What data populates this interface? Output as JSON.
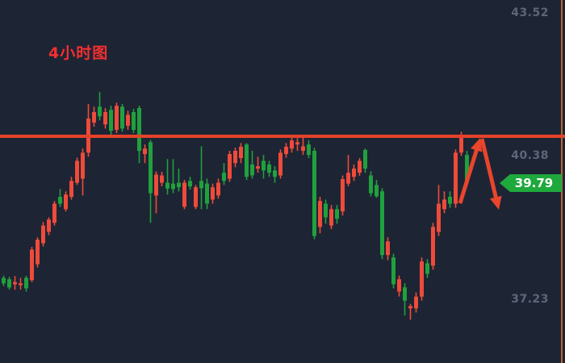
{
  "title": {
    "text": "4小时图"
  },
  "colors": {
    "background": "#1d2433",
    "bull": "#ef4b3a",
    "bear": "#21a13e",
    "line": "#e8432a",
    "arrow": "#e8452c",
    "axis_border": "#b96530",
    "label": "#5d6577",
    "badge_bg": "#1fa83c",
    "badge_text": "#ffffff",
    "title": "#f42f2f"
  },
  "price_axis": {
    "labels": [
      {
        "text": "43.52",
        "price": 43.52
      },
      {
        "text": "40.38",
        "price": 40.38
      },
      {
        "text": "37.23",
        "price": 37.23
      }
    ],
    "scale": {
      "price_a": 43.52,
      "y_a": 16,
      "price_b": 37.23,
      "y_b": 371
    }
  },
  "resistance_line": {
    "price": 40.81
  },
  "price_tag": {
    "text": "39.79",
    "price": 39.79
  },
  "annotations": {
    "arrows": [
      {
        "direction": "up",
        "from": [
          570,
          252
        ],
        "to": [
          595,
          171
        ]
      },
      {
        "direction": "down",
        "from": [
          597,
          172
        ],
        "to": [
          618,
          260
        ]
      }
    ]
  },
  "chart_data": {
    "type": "candlestick",
    "title": "4小时图",
    "timeframe": "4h",
    "last_price": 39.79,
    "resistance_price": 40.81,
    "y_axis_ticks": [
      43.52,
      40.38,
      37.23
    ],
    "ylim": [
      36.6,
      43.8
    ],
    "grid": false,
    "up_color_convention": "red-up-green-down",
    "layout": {
      "x_start": 2,
      "x_step": 7,
      "body_width": 5
    },
    "ohlc_format": [
      "open",
      "high",
      "low",
      "close"
    ],
    "candles": [
      [
        37.7,
        37.75,
        37.52,
        37.58
      ],
      [
        37.67,
        37.72,
        37.44,
        37.49
      ],
      [
        37.56,
        37.74,
        37.44,
        37.61
      ],
      [
        37.54,
        37.7,
        37.44,
        37.58
      ],
      [
        37.7,
        37.75,
        37.4,
        37.47
      ],
      [
        37.65,
        38.38,
        37.61,
        38.32
      ],
      [
        38.0,
        38.59,
        37.93,
        38.54
      ],
      [
        38.46,
        38.93,
        38.39,
        38.85
      ],
      [
        38.71,
        39.03,
        38.64,
        38.98
      ],
      [
        38.91,
        39.39,
        38.85,
        39.33
      ],
      [
        39.48,
        39.65,
        39.26,
        39.33
      ],
      [
        39.21,
        39.6,
        39.16,
        39.53
      ],
      [
        39.48,
        39.92,
        39.42,
        39.83
      ],
      [
        39.79,
        40.34,
        39.74,
        40.27
      ],
      [
        39.88,
        40.54,
        39.51,
        40.45
      ],
      [
        40.45,
        41.52,
        40.36,
        41.2
      ],
      [
        41.11,
        41.46,
        41.02,
        41.34
      ],
      [
        41.46,
        41.78,
        41.16,
        41.25
      ],
      [
        41.07,
        41.43,
        40.98,
        41.34
      ],
      [
        41.39,
        41.48,
        40.84,
        40.93
      ],
      [
        40.95,
        41.55,
        40.88,
        41.48
      ],
      [
        41.46,
        41.52,
        40.91,
        40.98
      ],
      [
        41.04,
        41.37,
        40.95,
        41.28
      ],
      [
        41.34,
        41.41,
        40.88,
        40.95
      ],
      [
        41.43,
        41.48,
        40.22,
        40.49
      ],
      [
        40.42,
        40.63,
        40.22,
        40.54
      ],
      [
        40.68,
        40.73,
        38.91,
        39.56
      ],
      [
        39.51,
        40.04,
        39.12,
        39.97
      ],
      [
        39.79,
        40.03,
        39.71,
        39.95
      ],
      [
        39.79,
        40.31,
        39.53,
        39.66
      ],
      [
        39.77,
        40.31,
        39.56,
        39.65
      ],
      [
        39.79,
        40.1,
        39.6,
        39.69
      ],
      [
        39.26,
        39.85,
        39.21,
        39.79
      ],
      [
        39.83,
        39.92,
        39.64,
        39.71
      ],
      [
        39.26,
        39.74,
        39.21,
        39.69
      ],
      [
        39.83,
        40.59,
        39.21,
        39.67
      ],
      [
        39.77,
        39.88,
        39.21,
        39.33
      ],
      [
        39.42,
        39.77,
        39.33,
        39.69
      ],
      [
        39.51,
        39.88,
        39.44,
        39.79
      ],
      [
        40.01,
        40.22,
        39.74,
        39.83
      ],
      [
        39.88,
        40.49,
        39.81,
        40.42
      ],
      [
        40.22,
        40.56,
        40.13,
        40.49
      ],
      [
        40.33,
        40.66,
        40.22,
        40.58
      ],
      [
        40.63,
        40.66,
        39.85,
        39.92
      ],
      [
        40.19,
        40.49,
        39.88,
        39.95
      ],
      [
        40.1,
        40.36,
        40.01,
        40.15
      ],
      [
        40.27,
        40.4,
        39.88,
        40.06
      ],
      [
        40.19,
        40.27,
        39.92,
        40.01
      ],
      [
        40.06,
        40.15,
        39.79,
        39.92
      ],
      [
        39.95,
        40.52,
        39.88,
        40.45
      ],
      [
        40.42,
        40.66,
        40.34,
        40.58
      ],
      [
        40.54,
        40.81,
        40.45,
        40.72
      ],
      [
        40.63,
        40.77,
        40.49,
        40.68
      ],
      [
        40.49,
        40.81,
        40.4,
        40.59
      ],
      [
        40.63,
        40.72,
        40.33,
        40.4
      ],
      [
        40.49,
        40.56,
        38.55,
        38.62
      ],
      [
        38.82,
        39.48,
        38.68,
        39.39
      ],
      [
        39.33,
        39.42,
        38.89,
        39.03
      ],
      [
        38.85,
        39.3,
        38.77,
        39.21
      ],
      [
        39.21,
        39.3,
        38.89,
        39.0
      ],
      [
        39.16,
        39.95,
        39.07,
        39.87
      ],
      [
        39.77,
        40.4,
        39.71,
        40.01
      ],
      [
        39.92,
        40.19,
        39.83,
        40.1
      ],
      [
        40.01,
        40.33,
        39.94,
        40.27
      ],
      [
        40.51,
        40.54,
        40.01,
        40.1
      ],
      [
        39.95,
        40.04,
        39.49,
        39.56
      ],
      [
        39.74,
        39.85,
        39.46,
        39.49
      ],
      [
        39.6,
        39.67,
        38.11,
        38.2
      ],
      [
        38.2,
        38.59,
        38.09,
        38.5
      ],
      [
        38.15,
        38.23,
        37.47,
        37.56
      ],
      [
        37.4,
        37.75,
        37.29,
        37.67
      ],
      [
        37.49,
        37.58,
        36.87,
        37.2
      ],
      [
        37.03,
        37.13,
        36.78,
        37.08
      ],
      [
        37.03,
        37.38,
        36.94,
        37.29
      ],
      [
        37.29,
        38.15,
        37.2,
        38.06
      ],
      [
        38.02,
        38.11,
        37.7,
        37.79
      ],
      [
        37.97,
        38.91,
        37.88,
        38.82
      ],
      [
        38.71,
        39.74,
        38.62,
        39.33
      ],
      [
        39.21,
        39.6,
        39.12,
        39.42
      ],
      [
        39.48,
        39.6,
        39.24,
        39.33
      ],
      [
        39.33,
        40.52,
        39.24,
        40.45
      ],
      [
        40.45,
        40.91,
        40.38,
        40.81
      ],
      [
        40.4,
        40.49,
        39.74,
        39.79
      ]
    ]
  }
}
